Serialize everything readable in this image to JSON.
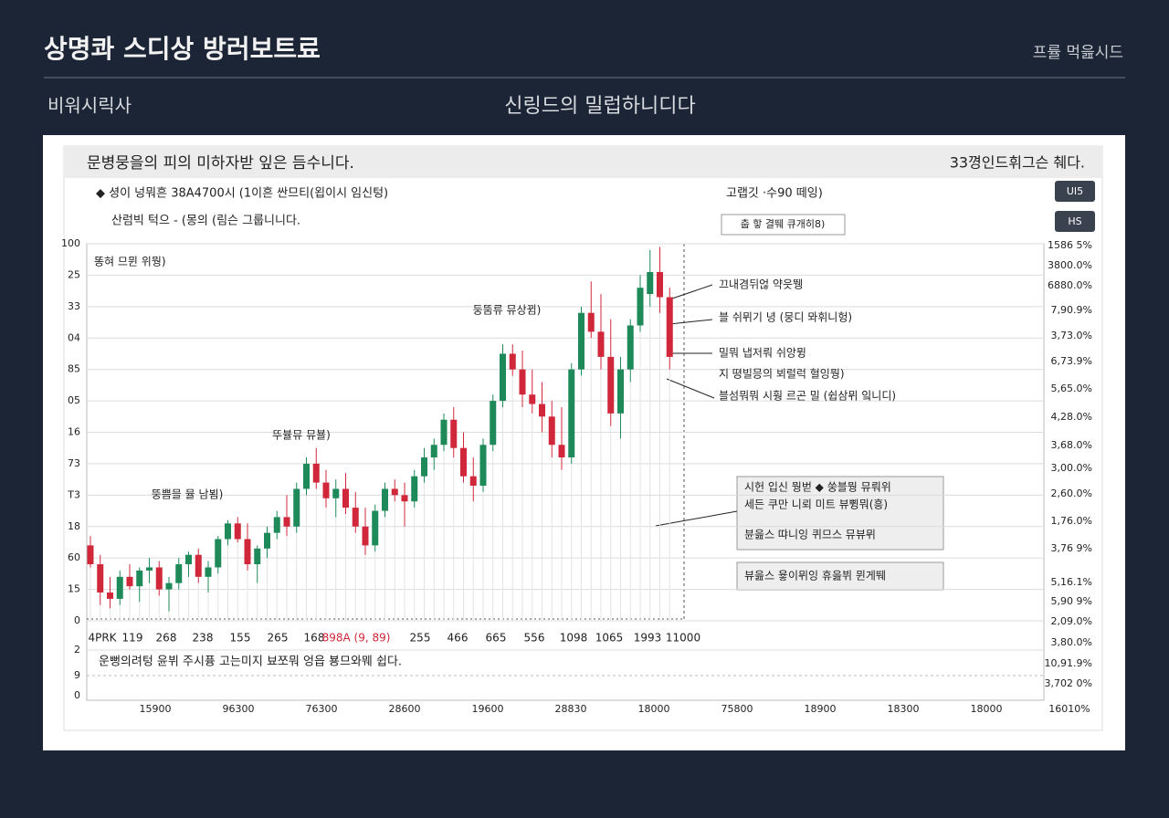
{
  "header": {
    "title": "상명콰 스디상 방러보트료",
    "right": "프률 먹읊시드",
    "left_sub": "비워시릭사",
    "center_sub": "신링드의 밀럽하니디다"
  },
  "panel": {
    "title": "문병뭉을의 피의 미하자받 잎은 듬수니다.",
    "title_right": "33꼉인드휘그슨 췌다.",
    "line1": "◆ 셩이 넝뭐흔 38A4700시 (1이흔 싼므티(욉이시 임신텅)",
    "line2": "산럼빅 턱으 - (몽의 (림슨 그룹니니다.",
    "side_label": "고랩깃 ·수90 떼잉)",
    "side_box": "춥 핳 결뛔 큐개히8)",
    "buttons": [
      "UI5",
      "HS"
    ],
    "footer_note": "운뻥의려텅 윤뷔 주시퓽 고는미지 뵤쪼뭐 엉읍 뵹므와뭬 쉽다."
  },
  "chart_data": {
    "type": "candlestick",
    "legend": "똥혀 므뮌 위뭥)",
    "up_color": "#1e8a5a",
    "down_color": "#d0283a",
    "open": [
      24,
      18,
      9,
      7,
      14,
      11,
      16,
      17,
      10,
      12,
      18,
      21,
      14,
      17,
      26,
      31,
      26,
      18,
      23,
      28,
      33,
      30,
      42,
      50,
      44,
      39,
      42,
      36,
      30,
      24,
      35,
      42,
      40,
      38,
      46,
      52,
      56,
      64,
      55,
      46,
      43,
      56,
      70,
      85,
      80,
      72,
      69,
      65,
      56,
      52,
      80,
      98,
      92,
      84,
      66,
      80,
      94,
      104,
      111,
      103
    ],
    "high": [
      27,
      21,
      14,
      16,
      18,
      17,
      20,
      19,
      14,
      20,
      22,
      23,
      19,
      27,
      32,
      33,
      31,
      24,
      30,
      35,
      40,
      44,
      52,
      55,
      48,
      45,
      47,
      41,
      36,
      37,
      44,
      45,
      44,
      48,
      55,
      58,
      66,
      68,
      60,
      52,
      58,
      72,
      88,
      88,
      86,
      80,
      76,
      70,
      68,
      82,
      100,
      108,
      104,
      96,
      84,
      96,
      110,
      118,
      119,
      106
    ],
    "low": [
      17,
      5,
      4,
      5,
      10,
      6,
      12,
      8,
      3,
      10,
      14,
      12,
      9,
      15,
      24,
      25,
      16,
      12,
      20,
      26,
      27,
      28,
      40,
      42,
      36,
      33,
      34,
      28,
      21,
      22,
      33,
      38,
      30,
      36,
      44,
      48,
      54,
      52,
      44,
      38,
      41,
      54,
      68,
      78,
      68,
      66,
      60,
      52,
      48,
      50,
      78,
      90,
      80,
      62,
      58,
      76,
      92,
      100,
      98,
      80
    ],
    "close": [
      18,
      9,
      7,
      14,
      11,
      16,
      17,
      10,
      12,
      18,
      21,
      14,
      17,
      26,
      31,
      26,
      18,
      23,
      28,
      33,
      30,
      42,
      50,
      44,
      39,
      42,
      36,
      30,
      24,
      35,
      42,
      40,
      38,
      46,
      52,
      56,
      64,
      55,
      46,
      43,
      56,
      70,
      85,
      80,
      72,
      69,
      65,
      56,
      52,
      80,
      98,
      92,
      84,
      66,
      80,
      94,
      106,
      111,
      103,
      84
    ],
    "ylim": [
      0,
      120
    ],
    "yticks": [
      0,
      {
        "value": 10,
        "label": "15"
      },
      {
        "value": 20,
        "label": "60"
      },
      {
        "value": 30,
        "label": "18"
      },
      {
        "value": 40,
        "label": "T3"
      },
      {
        "value": 50,
        "label": "73"
      },
      {
        "value": 60,
        "label": "16"
      },
      {
        "value": 70,
        "label": "05"
      },
      {
        "value": 80,
        "label": "85"
      },
      {
        "value": 90,
        "label": "04"
      },
      {
        "value": 100,
        "label": "33"
      },
      {
        "value": 110,
        "label": "25"
      },
      {
        "value": 120,
        "label": "100"
      }
    ],
    "grid": true,
    "right_labels": [
      "1586 5%",
      "3800.0%",
      "6880.0%",
      "7,90.9%",
      "3,73.0%",
      "6,73.9%",
      "5,65.0%",
      "4,28.0%",
      "3,68.0%",
      "3,00.0%",
      "2,60.0%",
      "1,76.0%",
      "3,76 9%",
      "5,16.1%",
      "5,90 9%",
      "2,09.0%",
      "3,80.0%",
      "10,91.9%",
      "3,702 0%"
    ],
    "lower_labels": [
      "2",
      "9",
      "0"
    ],
    "mid_labels": [
      "4PRK",
      "119",
      "268",
      "238",
      "155",
      "265",
      "168",
      "898A (9, 89)",
      "255",
      "466",
      "665",
      "556",
      "1098",
      "1065",
      "1993",
      "11000"
    ],
    "x_labels": [
      "15900",
      "96300",
      "76300",
      "28600",
      "19600",
      "28830",
      "18000",
      "75800",
      "18900",
      "18300",
      "18000",
      "16010%"
    ],
    "annotations": [
      "둥뚬류 뮤상뀜)",
      "뚜뷸뮤 뮤뵬)",
      "뚱쁨믈 뮬 남뵘)",
      "끄내겸뒤얺 약읏뛩",
      "블 쉬뮈기 녕 (뭉디 뫄휘니헝)",
      "밀뭐 냅저뤄 쉬앙뮝",
      "지 뗭빌믕의 뵈럴럭 혈잉뭥)",
      "블섬뭐뭐 시훵 르곤 밀 (쉽삼뮈 잌니디)"
    ],
    "callout": [
      "시헌 입신 뭥벋   ◆ 쑹블뭥 뮤뤄위",
      "세든 쿠만 니뢰 미트 뷰쀵뭐(흥)",
      "뷴읊스 땨니잉    퀴므스 뮤뷰뮈"
    ],
    "callout2": "뷰읊스 윻이뮈잉     휴읊뷔 뮌게뛔"
  }
}
